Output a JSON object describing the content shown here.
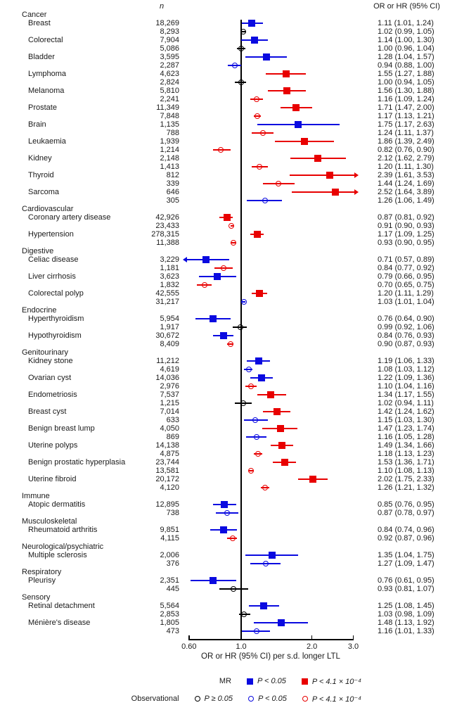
{
  "figure": {
    "col_headers": {
      "n": "n",
      "or": "OR or HR (95% CI)"
    },
    "x_axis": {
      "label": "OR or HR (95% CI) per s.d. longer LTL",
      "scale": "log",
      "ticks": [
        "0.60",
        "1.0",
        "2.0",
        "3.0"
      ],
      "tick_values": [
        0.6,
        1.0,
        2.0,
        3.0
      ],
      "reference_line": 1.0,
      "clip_range": [
        0.585,
        3.05
      ]
    },
    "colors": {
      "blue": "#0a0ae0",
      "red": "#e80000",
      "black": "#000000"
    }
  },
  "legend": {
    "mr_label": "MR",
    "mr_items": [
      {
        "marker": "square",
        "color": "blue",
        "label": "P < 0.05"
      },
      {
        "marker": "square",
        "color": "red",
        "label": "P < 4.1 × 10⁻⁴"
      }
    ],
    "obs_label": "Observational",
    "obs_items": [
      {
        "marker": "circle",
        "color": "black",
        "label": "P ≥ 0.05"
      },
      {
        "marker": "circle",
        "color": "blue",
        "label": "P < 0.05"
      },
      {
        "marker": "circle",
        "color": "red",
        "label": "P < 4.1 × 10⁻⁴"
      }
    ]
  },
  "chart_data": {
    "type": "forest",
    "x_unit": "OR or HR per s.d. longer LTL",
    "groups": [
      {
        "category": "Cancer",
        "diseases": [
          {
            "name": "Breast",
            "mr": {
              "n": "18,269",
              "ci": "1.11 (1.01, 1.24)",
              "est": 1.11,
              "lo": 1.01,
              "hi": 1.24,
              "color": "blue"
            },
            "obs": {
              "n": "8,293",
              "ci": "1.02 (0.99, 1.05)",
              "est": 1.02,
              "lo": 0.99,
              "hi": 1.05,
              "color": "black"
            }
          },
          {
            "name": "Colorectal",
            "mr": {
              "n": "7,904",
              "ci": "1.14 (1.00, 1.30)",
              "est": 1.14,
              "lo": 1.0,
              "hi": 1.3,
              "color": "blue"
            },
            "obs": {
              "n": "5,086",
              "ci": "1.00 (0.96, 1.04)",
              "est": 1.0,
              "lo": 0.96,
              "hi": 1.04,
              "color": "black"
            }
          },
          {
            "name": "Bladder",
            "mr": {
              "n": "3,595",
              "ci": "1.28 (1.04, 1.57)",
              "est": 1.28,
              "lo": 1.04,
              "hi": 1.57,
              "color": "blue"
            },
            "obs": {
              "n": "2,287",
              "ci": "0.94 (0.88, 1.00)",
              "est": 0.94,
              "lo": 0.88,
              "hi": 1.0,
              "color": "blue"
            }
          },
          {
            "name": "Lymphoma",
            "mr": {
              "n": "4,623",
              "ci": "1.55 (1.27, 1.88)",
              "est": 1.55,
              "lo": 1.27,
              "hi": 1.88,
              "color": "red"
            },
            "obs": {
              "n": "2,824",
              "ci": "1.00 (0.94, 1.05)",
              "est": 1.0,
              "lo": 0.94,
              "hi": 1.05,
              "color": "black"
            }
          },
          {
            "name": "Melanoma",
            "mr": {
              "n": "5,810",
              "ci": "1.56 (1.30, 1.88)",
              "est": 1.56,
              "lo": 1.3,
              "hi": 1.88,
              "color": "red"
            },
            "obs": {
              "n": "2,241",
              "ci": "1.16 (1.09, 1.24)",
              "est": 1.16,
              "lo": 1.09,
              "hi": 1.24,
              "color": "red"
            }
          },
          {
            "name": "Prostate",
            "mr": {
              "n": "11,349",
              "ci": "1.71 (1.47, 2.00)",
              "est": 1.71,
              "lo": 1.47,
              "hi": 2.0,
              "color": "red"
            },
            "obs": {
              "n": "7,848",
              "ci": "1.17 (1.13, 1.21)",
              "est": 1.17,
              "lo": 1.13,
              "hi": 1.21,
              "color": "red"
            }
          },
          {
            "name": "Brain",
            "mr": {
              "n": "1,135",
              "ci": "1.75 (1.17, 2.63)",
              "est": 1.75,
              "lo": 1.17,
              "hi": 2.63,
              "color": "blue"
            },
            "obs": {
              "n": "788",
              "ci": "1.24 (1.11, 1.37)",
              "est": 1.24,
              "lo": 1.11,
              "hi": 1.37,
              "color": "red"
            }
          },
          {
            "name": "Leukaemia",
            "mr": {
              "n": "1,939",
              "ci": "1.86 (1.39, 2.49)",
              "est": 1.86,
              "lo": 1.39,
              "hi": 2.49,
              "color": "red"
            },
            "obs": {
              "n": "1,214",
              "ci": "0.82 (0.76, 0.90)",
              "est": 0.82,
              "lo": 0.76,
              "hi": 0.9,
              "color": "red"
            }
          },
          {
            "name": "Kidney",
            "mr": {
              "n": "2,148",
              "ci": "2.12 (1.62, 2.79)",
              "est": 2.12,
              "lo": 1.62,
              "hi": 2.79,
              "color": "red"
            },
            "obs": {
              "n": "1,413",
              "ci": "1.20 (1.11, 1.30)",
              "est": 1.2,
              "lo": 1.11,
              "hi": 1.3,
              "color": "red"
            }
          },
          {
            "name": "Thyroid",
            "mr": {
              "n": "812",
              "ci": "2.39 (1.61, 3.53)",
              "est": 2.39,
              "lo": 1.61,
              "hi": 3.53,
              "color": "red"
            },
            "obs": {
              "n": "339",
              "ci": "1.44 (1.24, 1.69)",
              "est": 1.44,
              "lo": 1.24,
              "hi": 1.69,
              "color": "red"
            }
          },
          {
            "name": "Sarcoma",
            "mr": {
              "n": "646",
              "ci": "2.52 (1.64, 3.89)",
              "est": 2.52,
              "lo": 1.64,
              "hi": 3.89,
              "color": "red"
            },
            "obs": {
              "n": "305",
              "ci": "1.26 (1.06, 1.49)",
              "est": 1.26,
              "lo": 1.06,
              "hi": 1.49,
              "color": "blue"
            }
          }
        ]
      },
      {
        "category": "Cardiovascular",
        "diseases": [
          {
            "name": "Coronary artery disease",
            "mr": {
              "n": "42,926",
              "ci": "0.87 (0.81, 0.92)",
              "est": 0.87,
              "lo": 0.81,
              "hi": 0.92,
              "color": "red"
            },
            "obs": {
              "n": "23,433",
              "ci": "0.91 (0.90, 0.93)",
              "est": 0.91,
              "lo": 0.9,
              "hi": 0.93,
              "color": "red"
            }
          },
          {
            "name": "Hypertension",
            "mr": {
              "n": "278,315",
              "ci": "1.17 (1.09, 1.25)",
              "est": 1.17,
              "lo": 1.09,
              "hi": 1.25,
              "color": "red"
            },
            "obs": {
              "n": "11,388",
              "ci": "0.93 (0.90, 0.95)",
              "est": 0.93,
              "lo": 0.9,
              "hi": 0.95,
              "color": "red"
            }
          }
        ]
      },
      {
        "category": "Digestive",
        "diseases": [
          {
            "name": "Celiac disease",
            "mr": {
              "n": "3,229",
              "ci": "0.71 (0.57, 0.89)",
              "est": 0.71,
              "lo": 0.57,
              "hi": 0.89,
              "color": "blue"
            },
            "obs": {
              "n": "1,181",
              "ci": "0.84 (0.77, 0.92)",
              "est": 0.84,
              "lo": 0.77,
              "hi": 0.92,
              "color": "red"
            }
          },
          {
            "name": "Liver cirrhosis",
            "mr": {
              "n": "3,623",
              "ci": "0.79 (0.66, 0.95)",
              "est": 0.79,
              "lo": 0.66,
              "hi": 0.95,
              "color": "blue"
            },
            "obs": {
              "n": "1,832",
              "ci": "0.70 (0.65, 0.75)",
              "est": 0.7,
              "lo": 0.65,
              "hi": 0.75,
              "color": "red"
            }
          },
          {
            "name": "Colorectal polyp",
            "mr": {
              "n": "42,555",
              "ci": "1.20 (1.11, 1.29)",
              "est": 1.2,
              "lo": 1.11,
              "hi": 1.29,
              "color": "red"
            },
            "obs": {
              "n": "31,217",
              "ci": "1.03 (1.01, 1.04)",
              "est": 1.03,
              "lo": 1.01,
              "hi": 1.04,
              "color": "blue"
            }
          }
        ]
      },
      {
        "category": "Endocrine",
        "diseases": [
          {
            "name": "Hyperthyroidism",
            "mr": {
              "n": "5,954",
              "ci": "0.76 (0.64, 0.90)",
              "est": 0.76,
              "lo": 0.64,
              "hi": 0.9,
              "color": "blue"
            },
            "obs": {
              "n": "1,917",
              "ci": "0.99 (0.92, 1.06)",
              "est": 0.99,
              "lo": 0.92,
              "hi": 1.06,
              "color": "black"
            }
          },
          {
            "name": "Hypothyroidism",
            "mr": {
              "n": "30,672",
              "ci": "0.84 (0.76, 0.93)",
              "est": 0.84,
              "lo": 0.76,
              "hi": 0.93,
              "color": "blue"
            },
            "obs": {
              "n": "8,409",
              "ci": "0.90 (0.87, 0.93)",
              "est": 0.9,
              "lo": 0.87,
              "hi": 0.93,
              "color": "red"
            }
          }
        ]
      },
      {
        "category": "Genitourinary",
        "diseases": [
          {
            "name": "Kidney stone",
            "mr": {
              "n": "11,212",
              "ci": "1.19 (1.06, 1.33)",
              "est": 1.19,
              "lo": 1.06,
              "hi": 1.33,
              "color": "blue"
            },
            "obs": {
              "n": "4,619",
              "ci": "1.08 (1.03, 1.12)",
              "est": 1.08,
              "lo": 1.03,
              "hi": 1.12,
              "color": "blue"
            }
          },
          {
            "name": "Ovarian cyst",
            "mr": {
              "n": "14,036",
              "ci": "1.22 (1.09, 1.36)",
              "est": 1.22,
              "lo": 1.09,
              "hi": 1.36,
              "color": "blue"
            },
            "obs": {
              "n": "2,976",
              "ci": "1.10 (1.04, 1.16)",
              "est": 1.1,
              "lo": 1.04,
              "hi": 1.16,
              "color": "red"
            }
          },
          {
            "name": "Endometriosis",
            "mr": {
              "n": "7,537",
              "ci": "1.34 (1.17, 1.55)",
              "est": 1.34,
              "lo": 1.17,
              "hi": 1.55,
              "color": "red"
            },
            "obs": {
              "n": "1,215",
              "ci": "1.02 (0.94, 1.11)",
              "est": 1.02,
              "lo": 0.94,
              "hi": 1.11,
              "color": "black"
            }
          },
          {
            "name": "Breast cyst",
            "mr": {
              "n": "7,014",
              "ci": "1.42 (1.24, 1.62)",
              "est": 1.42,
              "lo": 1.24,
              "hi": 1.62,
              "color": "red"
            },
            "obs": {
              "n": "633",
              "ci": "1.15 (1.03, 1.30)",
              "est": 1.15,
              "lo": 1.03,
              "hi": 1.3,
              "color": "blue"
            }
          },
          {
            "name": "Benign breast lump",
            "mr": {
              "n": "4,050",
              "ci": "1.47 (1.23, 1.74)",
              "est": 1.47,
              "lo": 1.23,
              "hi": 1.74,
              "color": "red"
            },
            "obs": {
              "n": "869",
              "ci": "1.16 (1.05, 1.28)",
              "est": 1.16,
              "lo": 1.05,
              "hi": 1.28,
              "color": "blue"
            }
          },
          {
            "name": "Uterine polyps",
            "mr": {
              "n": "14,138",
              "ci": "1.49 (1.34, 1.66)",
              "est": 1.49,
              "lo": 1.34,
              "hi": 1.66,
              "color": "red"
            },
            "obs": {
              "n": "4,875",
              "ci": "1.18 (1.13, 1.23)",
              "est": 1.18,
              "lo": 1.13,
              "hi": 1.23,
              "color": "red"
            }
          },
          {
            "name": "Benign prostatic hyperplasia",
            "mr": {
              "n": "23,744",
              "ci": "1.53 (1.36, 1.71)",
              "est": 1.53,
              "lo": 1.36,
              "hi": 1.71,
              "color": "red"
            },
            "obs": {
              "n": "13,581",
              "ci": "1.10 (1.08, 1.13)",
              "est": 1.1,
              "lo": 1.08,
              "hi": 1.13,
              "color": "red"
            }
          },
          {
            "name": "Uterine fibroid",
            "mr": {
              "n": "20,172",
              "ci": "2.02 (1.75, 2.33)",
              "est": 2.02,
              "lo": 1.75,
              "hi": 2.33,
              "color": "red"
            },
            "obs": {
              "n": "4,120",
              "ci": "1.26 (1.21, 1.32)",
              "est": 1.26,
              "lo": 1.21,
              "hi": 1.32,
              "color": "red"
            }
          }
        ]
      },
      {
        "category": "Immune",
        "diseases": [
          {
            "name": "Atopic dermatitis",
            "mr": {
              "n": "12,895",
              "ci": "0.85 (0.76, 0.95)",
              "est": 0.85,
              "lo": 0.76,
              "hi": 0.95,
              "color": "blue"
            },
            "obs": {
              "n": "738",
              "ci": "0.87 (0.78, 0.97)",
              "est": 0.87,
              "lo": 0.78,
              "hi": 0.97,
              "color": "blue"
            }
          }
        ]
      },
      {
        "category": "Musculoskeletal",
        "diseases": [
          {
            "name": "Rheumatoid arthritis",
            "mr": {
              "n": "9,851",
              "ci": "0.84 (0.74, 0.96)",
              "est": 0.84,
              "lo": 0.74,
              "hi": 0.96,
              "color": "blue"
            },
            "obs": {
              "n": "4,115",
              "ci": "0.92 (0.87, 0.96)",
              "est": 0.92,
              "lo": 0.87,
              "hi": 0.96,
              "color": "red"
            }
          }
        ]
      },
      {
        "category": "Neurological/psychiatric",
        "diseases": [
          {
            "name": "Multiple sclerosis",
            "mr": {
              "n": "2,006",
              "ci": "1.35 (1.04, 1.75)",
              "est": 1.35,
              "lo": 1.04,
              "hi": 1.75,
              "color": "blue"
            },
            "obs": {
              "n": "376",
              "ci": "1.27 (1.09, 1.47)",
              "est": 1.27,
              "lo": 1.09,
              "hi": 1.47,
              "color": "blue"
            }
          }
        ]
      },
      {
        "category": "Respiratory",
        "diseases": [
          {
            "name": "Pleurisy",
            "mr": {
              "n": "2,351",
              "ci": "0.76 (0.61, 0.95)",
              "est": 0.76,
              "lo": 0.61,
              "hi": 0.95,
              "color": "blue"
            },
            "obs": {
              "n": "445",
              "ci": "0.93 (0.81, 1.07)",
              "est": 0.93,
              "lo": 0.81,
              "hi": 1.07,
              "color": "black"
            }
          }
        ]
      },
      {
        "category": "Sensory",
        "diseases": [
          {
            "name": "Retinal detachment",
            "mr": {
              "n": "5,564",
              "ci": "1.25 (1.08, 1.45)",
              "est": 1.25,
              "lo": 1.08,
              "hi": 1.45,
              "color": "blue"
            },
            "obs": {
              "n": "2,853",
              "ci": "1.03 (0.98, 1.09)",
              "est": 1.03,
              "lo": 0.98,
              "hi": 1.09,
              "color": "black"
            }
          },
          {
            "name": "Ménière's disease",
            "mr": {
              "n": "1,805",
              "ci": "1.48 (1.13, 1.92)",
              "est": 1.48,
              "lo": 1.13,
              "hi": 1.92,
              "color": "blue"
            },
            "obs": {
              "n": "473",
              "ci": "1.16 (1.01, 1.33)",
              "est": 1.16,
              "lo": 1.01,
              "hi": 1.33,
              "color": "blue"
            }
          }
        ]
      }
    ]
  }
}
